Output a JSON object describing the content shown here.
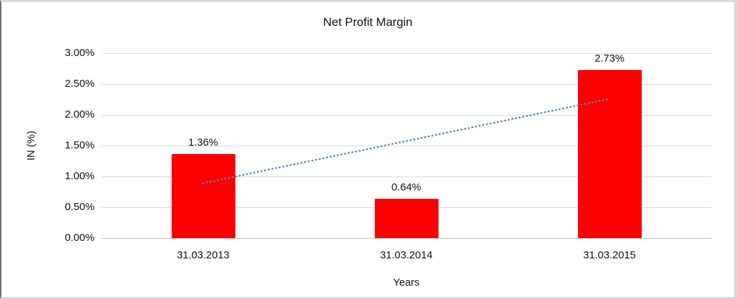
{
  "window": {
    "background": "#ffffff",
    "border_color": "#d9d9d9"
  },
  "chart_data": {
    "type": "bar",
    "title": "Net Profit Margin",
    "categories": [
      "31.03.2013",
      "31.03.2014",
      "31.03.2015"
    ],
    "values": [
      1.36,
      0.64,
      2.73
    ],
    "data_labels": [
      "1.36%",
      "0.64%",
      "2.73%"
    ],
    "xlabel": "Years",
    "ylabel": "IN (%)",
    "ylim": [
      0,
      3
    ],
    "ytick_step": 0.5,
    "ytick_labels": [
      "0.00%",
      "0.50%",
      "1.00%",
      "1.50%",
      "2.00%",
      "2.50%",
      "3.00%"
    ],
    "grid": true,
    "legend": false,
    "bar_color": "#ff0000",
    "gridline_color": "#d9d9d9",
    "axis_line_color": "#bfbfbf",
    "trendline": {
      "type": "linear",
      "style": "dotted",
      "color": "#4a86c8",
      "start_value": 0.89,
      "end_value": 2.26
    }
  }
}
